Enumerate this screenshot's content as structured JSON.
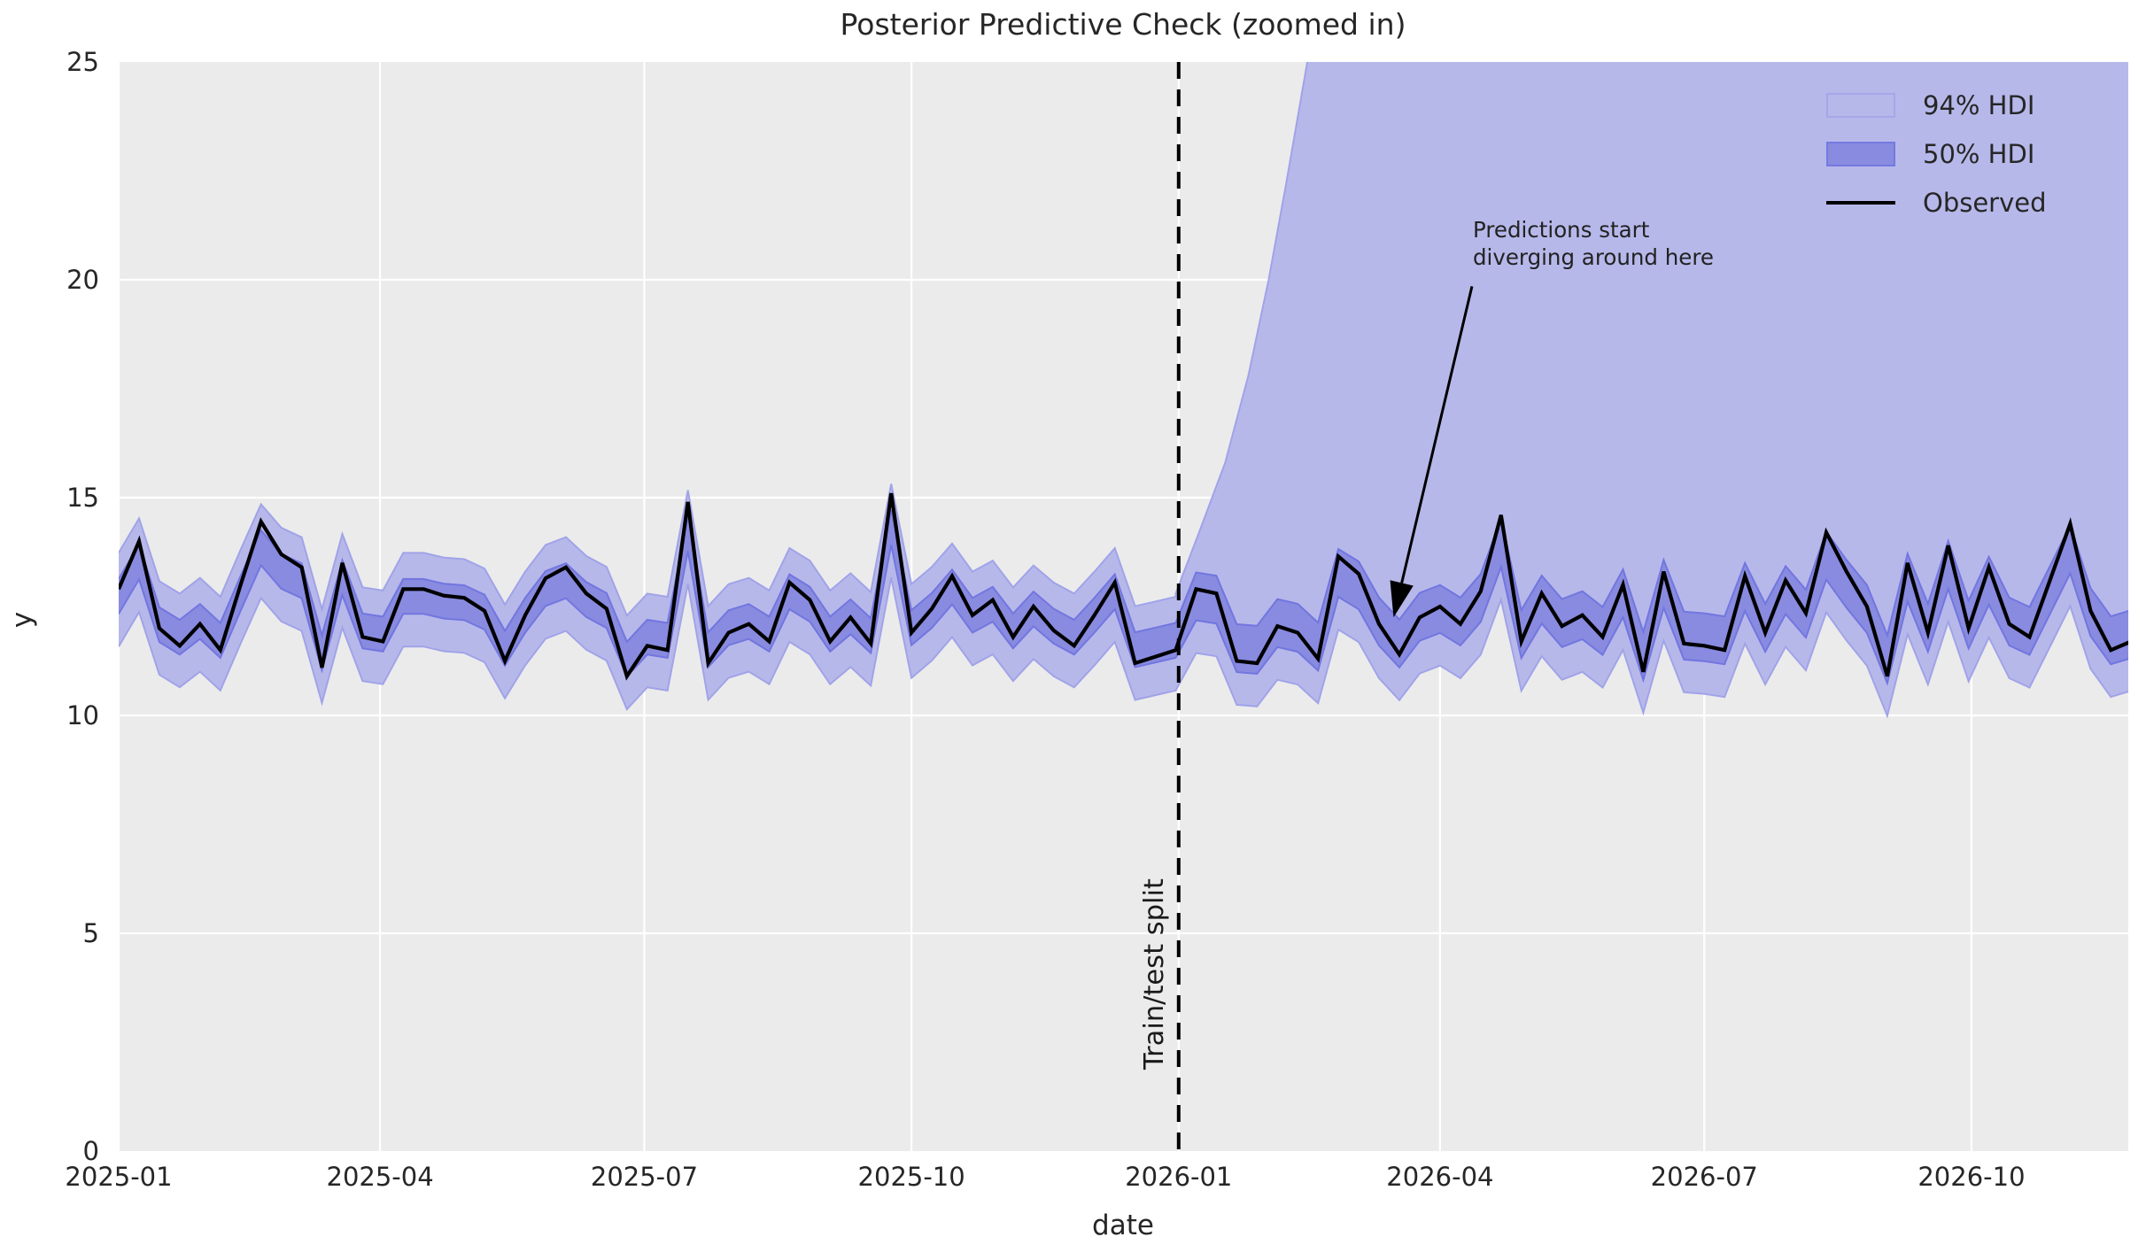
{
  "figure": {
    "title": "Posterior Predictive Check (zoomed in)",
    "xlabel": "date",
    "ylabel": "y"
  },
  "colors": {
    "background": "#ffffff",
    "plot_bg": "#ebebeb",
    "grid": "#ffffff",
    "hdi94_fill": "#b7b8ea",
    "hdi94_edge": "#a0a3e8",
    "hdi50_fill": "#888bdf",
    "hdi50_edge": "#7276df",
    "observed_line": "#000000",
    "split_line": "#000000",
    "text": "#262626"
  },
  "legend": {
    "items": [
      {
        "label": "94% HDI",
        "swatch": "patch-light"
      },
      {
        "label": "50% HDI",
        "swatch": "patch-dark"
      },
      {
        "label": "Observed",
        "swatch": "line"
      }
    ]
  },
  "split": {
    "label": "Train/test split",
    "day": 364
  },
  "annotation": {
    "line1": "Predictions start",
    "line2": "diverging around here",
    "text_day": 466,
    "text_value": 19.85,
    "tip_day": 439,
    "tip_value": 12.25
  },
  "chart_data": {
    "type": "line",
    "title": "Posterior Predictive Check (zoomed in)",
    "xlabel": "date",
    "ylabel": "y",
    "ylim": [
      0,
      25
    ],
    "grid": true,
    "legend_position": "upper right",
    "x_start_date": "2025-01-01",
    "x_step_days": 7,
    "x_max_day": 692,
    "x_ticks": [
      {
        "label": "2025-01",
        "day": 0
      },
      {
        "label": "2025-04",
        "day": 90
      },
      {
        "label": "2025-07",
        "day": 181
      },
      {
        "label": "2025-10",
        "day": 273
      },
      {
        "label": "2026-01",
        "day": 365
      },
      {
        "label": "2026-04",
        "day": 455
      },
      {
        "label": "2026-07",
        "day": 546
      },
      {
        "label": "2026-10",
        "day": 638
      }
    ],
    "y_ticks": [
      0,
      5,
      10,
      15,
      20,
      25
    ],
    "train_test_split_day": 364,
    "series": [
      {
        "name": "Observed",
        "type": "line",
        "values": [
          12.9,
          14.0,
          12.0,
          11.6,
          12.1,
          11.5,
          13.0,
          14.45,
          13.7,
          13.4,
          11.1,
          13.5,
          11.8,
          11.7,
          12.9,
          12.9,
          12.75,
          12.7,
          12.4,
          11.25,
          12.3,
          13.15,
          13.4,
          12.8,
          12.45,
          10.9,
          11.6,
          11.5,
          14.9,
          11.2,
          11.9,
          12.1,
          11.7,
          13.05,
          12.65,
          11.7,
          12.25,
          11.65,
          15.1,
          11.9,
          12.45,
          13.2,
          12.3,
          12.65,
          11.8,
          12.5,
          11.95,
          11.6,
          12.3,
          13.05,
          11.2,
          11.35,
          11.5,
          12.9,
          12.8,
          11.25,
          11.2,
          12.05,
          11.9,
          11.3,
          13.65,
          13.25,
          12.1,
          11.4,
          12.25,
          12.5,
          12.1,
          12.85,
          14.6,
          11.7,
          12.8,
          12.05,
          12.3,
          11.8,
          13.0,
          11.0,
          13.3,
          11.65,
          11.6,
          11.5,
          13.2,
          11.9,
          13.1,
          12.35,
          14.2,
          13.3,
          12.5,
          10.9,
          13.5,
          11.9,
          13.9,
          12.0,
          13.4,
          12.1,
          11.8,
          13.1,
          14.4,
          12.4,
          11.5,
          11.7
        ]
      }
    ],
    "median_model": {
      "anchor": 12.3,
      "shrink": 0.72
    },
    "hdi50": {
      "half_width_train": 0.4,
      "half_width_test": 0.55
    },
    "hdi94": {
      "lower_offset_train": 1.15,
      "lower_offset_test": 1.3,
      "upper_offset_train": 1.0,
      "upper_test_anchors": [
        [
          364,
          12.8
        ],
        [
          372,
          14.2
        ],
        [
          381,
          15.8
        ],
        [
          389,
          17.8
        ],
        [
          396,
          20.0
        ],
        [
          402,
          22.2
        ],
        [
          408,
          24.5
        ],
        [
          414,
          26.8
        ],
        [
          421,
          28.0
        ],
        [
          692,
          28.0
        ]
      ]
    }
  }
}
